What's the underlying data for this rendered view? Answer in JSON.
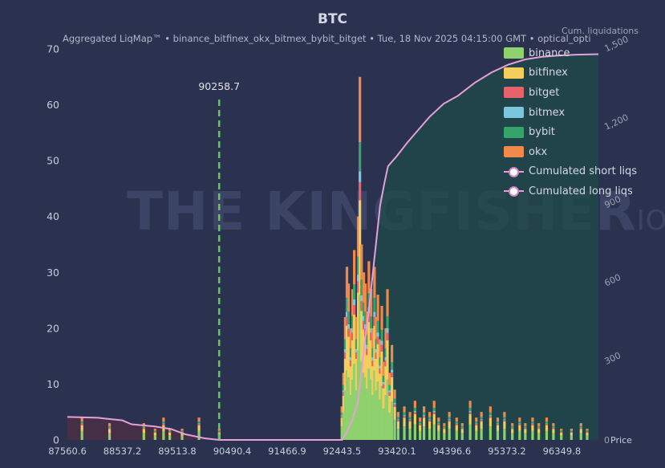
{
  "chart_data": {
    "type": "bar",
    "title": "BTC",
    "subtitle": "Aggregated LiqMap™  •  binance_bitfinex_okx_bitmex_bybit_bitget  •  Tue, 18 Nov 2025 04:15:00 GMT  •  optical_opti",
    "watermark": "THE KINGFISHER",
    "watermark_suffix": "IO",
    "xlim": [
      87560.6,
      97000
    ],
    "ylim": [
      0,
      70
    ],
    "y2lim": [
      0,
      1500
    ],
    "y2_label": "Cum. liquidations",
    "x_tick_labels": [
      "87560.6",
      "88537.2",
      "89513.8",
      "90490.4",
      "91466.9",
      "92443.5",
      "93420.1",
      "94396.6",
      "95373.2",
      "96349.8"
    ],
    "y_ticks": [
      0,
      10,
      20,
      30,
      40,
      50,
      60,
      70
    ],
    "y2_ticks": [
      0,
      300,
      600,
      900,
      1200,
      1500
    ],
    "y2_tick_labels": [
      "0",
      "300",
      "600",
      "900",
      "1,200",
      "1,500"
    ],
    "price_label": "Price",
    "current_price": 90258.7,
    "current_price_label": "90258.7",
    "legend": [
      "binance",
      "bitfinex",
      "bitget",
      "bitmex",
      "bybit",
      "okx",
      "Cumulated short liqs",
      "Cumulated long liqs"
    ],
    "series_colors": {
      "binance": "#8fd16d",
      "bitfinex": "#f4cd5c",
      "bitget": "#e8626a",
      "bitmex": "#7bc6de",
      "bybit": "#35a36a",
      "okx": "#f08a4b",
      "cumulated": "#e6a0d8",
      "current_price": "#6fbf73"
    },
    "bars": [
      {
        "x": 87820,
        "v": 4
      },
      {
        "x": 88310,
        "v": 3
      },
      {
        "x": 88920,
        "v": 3
      },
      {
        "x": 89120,
        "v": 2
      },
      {
        "x": 89270,
        "v": 4
      },
      {
        "x": 89380,
        "v": 2
      },
      {
        "x": 89600,
        "v": 2
      },
      {
        "x": 89900,
        "v": 4
      },
      {
        "x": 90260,
        "v": 2
      },
      {
        "x": 92440,
        "v": 6
      },
      {
        "x": 92470,
        "v": 12
      },
      {
        "x": 92500,
        "v": 22
      },
      {
        "x": 92530,
        "v": 31
      },
      {
        "x": 92560,
        "v": 28
      },
      {
        "x": 92600,
        "v": 20
      },
      {
        "x": 92630,
        "v": 27
      },
      {
        "x": 92660,
        "v": 34
      },
      {
        "x": 92700,
        "v": 22
      },
      {
        "x": 92730,
        "v": 40
      },
      {
        "x": 92760,
        "v": 65
      },
      {
        "x": 92790,
        "v": 35
      },
      {
        "x": 92830,
        "v": 30
      },
      {
        "x": 92860,
        "v": 28
      },
      {
        "x": 92890,
        "v": 23
      },
      {
        "x": 92920,
        "v": 32
      },
      {
        "x": 92960,
        "v": 27
      },
      {
        "x": 92990,
        "v": 20
      },
      {
        "x": 93020,
        "v": 31
      },
      {
        "x": 93050,
        "v": 22
      },
      {
        "x": 93080,
        "v": 26
      },
      {
        "x": 93120,
        "v": 18
      },
      {
        "x": 93150,
        "v": 24
      },
      {
        "x": 93180,
        "v": 14
      },
      {
        "x": 93220,
        "v": 20
      },
      {
        "x": 93250,
        "v": 27
      },
      {
        "x": 93290,
        "v": 12
      },
      {
        "x": 93330,
        "v": 17
      },
      {
        "x": 93380,
        "v": 9
      },
      {
        "x": 93440,
        "v": 5
      },
      {
        "x": 93550,
        "v": 6
      },
      {
        "x": 93650,
        "v": 5
      },
      {
        "x": 93740,
        "v": 7
      },
      {
        "x": 93830,
        "v": 4
      },
      {
        "x": 93900,
        "v": 6
      },
      {
        "x": 94000,
        "v": 5
      },
      {
        "x": 94080,
        "v": 7
      },
      {
        "x": 94160,
        "v": 4
      },
      {
        "x": 94260,
        "v": 3
      },
      {
        "x": 94350,
        "v": 5
      },
      {
        "x": 94480,
        "v": 4
      },
      {
        "x": 94580,
        "v": 3
      },
      {
        "x": 94720,
        "v": 7
      },
      {
        "x": 94830,
        "v": 4
      },
      {
        "x": 94920,
        "v": 5
      },
      {
        "x": 95080,
        "v": 6
      },
      {
        "x": 95210,
        "v": 4
      },
      {
        "x": 95330,
        "v": 5
      },
      {
        "x": 95470,
        "v": 3
      },
      {
        "x": 95600,
        "v": 4
      },
      {
        "x": 95700,
        "v": 3
      },
      {
        "x": 95830,
        "v": 4
      },
      {
        "x": 95940,
        "v": 3
      },
      {
        "x": 96080,
        "v": 4
      },
      {
        "x": 96200,
        "v": 3
      },
      {
        "x": 96340,
        "v": 2
      },
      {
        "x": 96520,
        "v": 2
      },
      {
        "x": 96690,
        "v": 3
      },
      {
        "x": 96800,
        "v": 2
      }
    ],
    "cumulated_short": [
      [
        90260,
        0
      ],
      [
        92443.5,
        0
      ],
      [
        92520,
        25
      ],
      [
        92620,
        75
      ],
      [
        92720,
        140
      ],
      [
        92790,
        260
      ],
      [
        92850,
        380
      ],
      [
        92920,
        500
      ],
      [
        92990,
        640
      ],
      [
        93060,
        780
      ],
      [
        93120,
        900
      ],
      [
        93200,
        990
      ],
      [
        93260,
        1050
      ],
      [
        93420,
        1090
      ],
      [
        93600,
        1140
      ],
      [
        93800,
        1190
      ],
      [
        94000,
        1240
      ],
      [
        94250,
        1290
      ],
      [
        94500,
        1320
      ],
      [
        94800,
        1370
      ],
      [
        95100,
        1410
      ],
      [
        95400,
        1440
      ],
      [
        95700,
        1460
      ],
      [
        96000,
        1470
      ],
      [
        96300,
        1475
      ],
      [
        96600,
        1478
      ],
      [
        97000,
        1480
      ]
    ],
    "cumulated_long": [
      [
        87560.6,
        88
      ],
      [
        88100,
        85
      ],
      [
        88537.2,
        75
      ],
      [
        88700,
        60
      ],
      [
        89100,
        52
      ],
      [
        89400,
        42
      ],
      [
        89650,
        22
      ],
      [
        90000,
        6
      ],
      [
        90260,
        0
      ]
    ]
  }
}
